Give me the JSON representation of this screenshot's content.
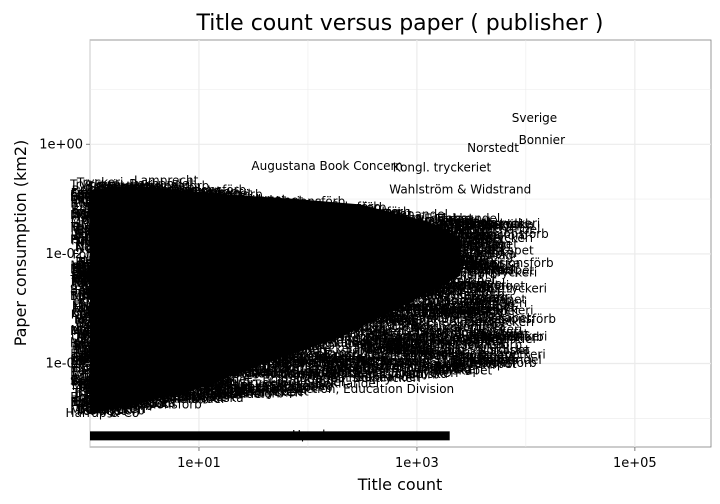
{
  "chart_data": {
    "type": "scatter",
    "title": "Title count versus paper ( publisher )",
    "xlabel": "Title count",
    "ylabel": "Paper consumption (km2)",
    "x_scale": "log10",
    "y_scale": "log10",
    "xlim": [
      1,
      500000
    ],
    "ylim": [
      3e-06,
      80
    ],
    "x_ticks": [
      10,
      1000,
      100000
    ],
    "x_tick_labels": [
      "1e+01",
      "1e+03",
      "1e+05"
    ],
    "y_ticks": [
      1,
      0.01,
      0.0001
    ],
    "y_tick_labels": [
      "1e+00",
      "1e-02",
      "1e-04"
    ],
    "grid": true,
    "background": "#ffffff",
    "grid_color": "#ebebeb",
    "mark_color": "#000000",
    "series": [
      {
        "labeled_points": [
          {
            "label": "Sverige",
            "x": 12000,
            "y": 3.0
          },
          {
            "label": "Bonnier",
            "x": 14000,
            "y": 1.2
          },
          {
            "label": "Norstedt",
            "x": 5000,
            "y": 0.85
          },
          {
            "label": "Kongl. tryckeriet",
            "x": 1700,
            "y": 0.38
          },
          {
            "label": "Augustana Book Concern",
            "x": 150,
            "y": 0.4
          },
          {
            "label": "Wahlström & Widstrand",
            "x": 2500,
            "y": 0.15
          },
          {
            "label": "Lamprecht",
            "x": 5,
            "y": 0.22
          },
          {
            "label": "Winstrup",
            "x": 10,
            "y": 0.13
          },
          {
            "label": "Lindarna",
            "x": 400,
            "y": 0.00018
          },
          {
            "label": "Wermlands-tidn",
            "x": 130,
            "y": 0.0001
          },
          {
            "label": "Education Section, Education Division",
            "x": 200,
            "y": 3.4e-05
          },
          {
            "label": "Harrap & Co",
            "x": 1.3,
            "y": 1.25e-05
          },
          {
            "label": "Upsala",
            "x": 110,
            "y": 5e-06
          }
        ],
        "dense_cluster": {
          "x_range": [
            1,
            6000
          ],
          "y_range": [
            6e-06,
            0.2
          ],
          "baseline_row_y": 4.5e-06,
          "baseline_row_x_range": [
            1,
            2000
          ]
        }
      }
    ]
  }
}
